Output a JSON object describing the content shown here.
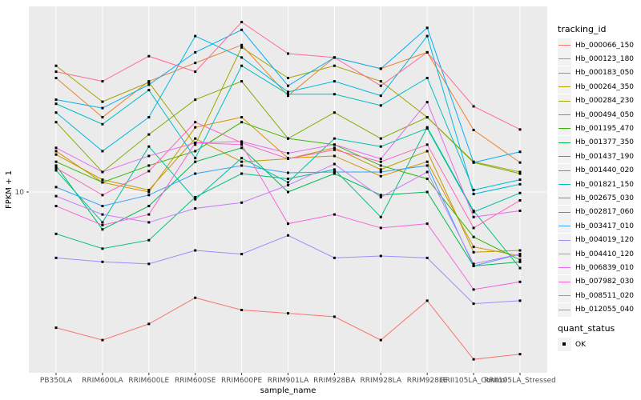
{
  "chart_data": {
    "type": "line",
    "title": "",
    "xlabel": "sample_name",
    "ylabel": "FPKM + 1",
    "y_scale": "log10",
    "grid": "major-only",
    "panel_bg": "#ebebeb",
    "grid_color": "#ffffff",
    "point_marker": "black-square",
    "y_ticks": [
      {
        "value": 10,
        "label": "10"
      }
    ],
    "ylim": [
      1.66,
      63
    ],
    "categories": [
      "PB350LA",
      "RRIM600LA",
      "RRIM600LE",
      "RRIM600SE",
      "RRIM600PE",
      "RRIM901LA",
      "RRIM928BA",
      "RRIM928LA",
      "RRIM928LE",
      "RRII105LA_Control",
      "RRII105LA_Stressed"
    ],
    "series": [
      {
        "name": "Hb_000066_150",
        "color": "#F8766D",
        "values": [
          2.6,
          2.3,
          2.7,
          3.5,
          3.1,
          3.0,
          2.9,
          2.3,
          3.4,
          1.9,
          2.0
        ]
      },
      {
        "name": "Hb_000123_180",
        "color": "#EA8331",
        "values": [
          31,
          21,
          30,
          36,
          43,
          26,
          38,
          34,
          40,
          18.5,
          13.4
        ]
      },
      {
        "name": "Hb_000183_050",
        "color": "#D89000",
        "values": [
          15,
          11,
          10,
          19,
          21,
          14,
          14.3,
          11.7,
          13.5,
          5.8,
          5.3
        ]
      },
      {
        "name": "Hb_000264_350",
        "color": "#C09B00",
        "values": [
          14.5,
          11.3,
          10.2,
          17,
          13.5,
          13.9,
          15.5,
          12.5,
          15,
          5.5,
          5.6
        ]
      },
      {
        "name": "Hb_000284_230",
        "color": "#A3A500",
        "values": [
          35,
          24.5,
          29.7,
          16,
          42,
          31,
          35,
          30,
          21,
          13.5,
          12.2
        ]
      },
      {
        "name": "Hb_000494_050",
        "color": "#7CAE00",
        "values": [
          20,
          12.2,
          17.7,
          25,
          30,
          17,
          22,
          17,
          21,
          13.4,
          12.0
        ]
      },
      {
        "name": "Hb_001195_470",
        "color": "#39B600",
        "values": [
          13.5,
          11,
          13,
          15,
          20,
          17,
          16,
          13,
          11.4,
          6.4,
          5.1
        ]
      },
      {
        "name": "Hb_001377_350",
        "color": "#00BB4E",
        "values": [
          13,
          6.9,
          8.7,
          13.5,
          15.5,
          10,
          12,
          9.7,
          10,
          4.8,
          5.0
        ]
      },
      {
        "name": "Hb_001437_190",
        "color": "#00BF7D",
        "values": [
          6.6,
          5.7,
          6.2,
          9.5,
          12,
          11.4,
          12.5,
          7.8,
          19,
          8.3,
          4.7
        ]
      },
      {
        "name": "Hb_001440_020",
        "color": "#00C1A3",
        "values": [
          12.4,
          7.4,
          15.7,
          9.3,
          14,
          11,
          17,
          15.7,
          18.8,
          8.2,
          9.9
        ]
      },
      {
        "name": "Hb_001821_150",
        "color": "#00BFC4",
        "values": [
          24,
          19.6,
          27.5,
          14,
          35,
          26.4,
          26.4,
          23.6,
          31,
          10.2,
          11.3
        ]
      },
      {
        "name": "Hb_002675_030",
        "color": "#00BAE0",
        "values": [
          22,
          15,
          21,
          47,
          38,
          27,
          30,
          26,
          47,
          9.8,
          10.8
        ]
      },
      {
        "name": "Hb_002817_060",
        "color": "#00B0F6",
        "values": [
          25,
          23,
          29,
          40,
          50,
          28.7,
          38,
          34,
          51,
          13.4,
          14.9
        ]
      },
      {
        "name": "Hb_003417_010",
        "color": "#35A2FF",
        "values": [
          10.5,
          8.7,
          9.7,
          12,
          13,
          12.1,
          12.2,
          12.2,
          13,
          4.8,
          5.4
        ]
      },
      {
        "name": "Hb_004019_120",
        "color": "#9590FF",
        "values": [
          5.2,
          5.0,
          4.9,
          5.6,
          5.4,
          6.5,
          5.2,
          5.3,
          5.2,
          3.3,
          3.4
        ]
      },
      {
        "name": "Hb_004410_120",
        "color": "#C77CFF",
        "values": [
          9.6,
          8.0,
          7.4,
          8.5,
          9.0,
          10.7,
          13.2,
          9.5,
          12.2,
          4.9,
          5.4
        ]
      },
      {
        "name": "Hb_006839_010",
        "color": "#E76BF3",
        "values": [
          15.5,
          12.2,
          14.3,
          16.3,
          16.5,
          14.7,
          16,
          13.9,
          24.4,
          7.8,
          8.3
        ]
      },
      {
        "name": "Hb_007982_030",
        "color": "#FA62DB",
        "values": [
          8.7,
          7.2,
          8.0,
          16.3,
          16,
          7.3,
          8.0,
          7.0,
          7.3,
          3.8,
          4.1
        ]
      },
      {
        "name": "Hb_008511_020",
        "color": "#FF62BC",
        "values": [
          12.7,
          9.7,
          12.3,
          20,
          16.3,
          13.9,
          15.2,
          13.5,
          16,
          7.0,
          9.2
        ]
      },
      {
        "name": "Hb_012055_040",
        "color": "#FF6A98",
        "values": [
          33,
          30,
          38.5,
          33,
          54,
          39.5,
          38,
          28.7,
          40,
          23.4,
          18.6
        ]
      }
    ],
    "legend": {
      "tracking_title": "tracking_id",
      "quant_title": "quant_status",
      "quant_items": [
        {
          "label": "OK",
          "marker": "black-square"
        }
      ],
      "position": "right"
    }
  }
}
